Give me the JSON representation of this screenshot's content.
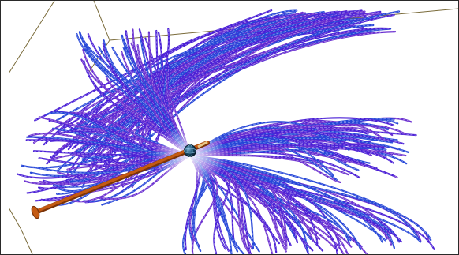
{
  "scene": {
    "subject": "streamline-bundle-visualization",
    "colors": {
      "background": "#ffffff",
      "frame": "#2a2a2a",
      "room_edges": "#7a6b3a",
      "streamline_primary": "#4a1fd6",
      "streamline_secondary": "#6a2fd0",
      "streamline_blue": "#2546d8",
      "highlight": "#ffffff",
      "rod": "#c45a12",
      "rod_dark": "#7a3308",
      "probe_sphere": "#1a4f6e"
    },
    "icons": {
      "probe": "sphere-probe-icon",
      "rod": "seed-rod-icon"
    }
  }
}
